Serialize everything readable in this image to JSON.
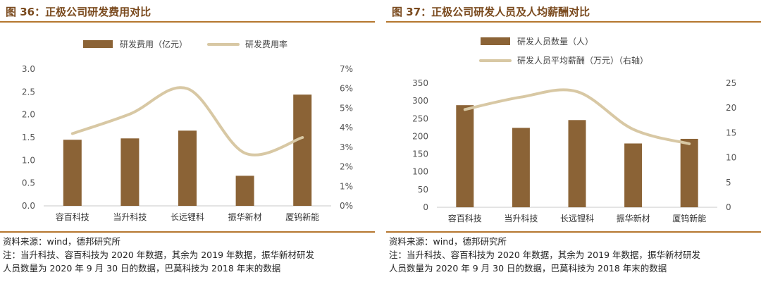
{
  "colors": {
    "bar": "#8b6336",
    "line": "#d8c8a4",
    "title": "#7a4a1e",
    "rule": "#b5772f"
  },
  "charts": [
    {
      "title": "图 36：正极公司研发费用对比",
      "source": "资料来源：wind，德邦研究所",
      "chart_data": {
        "type": "bar",
        "categories": [
          "容百科技",
          "当升科技",
          "长远锂科",
          "振华新材",
          "厦钨新能"
        ],
        "series": [
          {
            "name": "研发费用（亿元）",
            "type": "bar",
            "axis": "left",
            "values": [
              1.45,
              1.48,
              1.65,
              0.66,
              2.44
            ]
          },
          {
            "name": "研发费用率",
            "type": "line",
            "axis": "right",
            "values": [
              3.7,
              4.7,
              6.0,
              2.7,
              3.5
            ]
          }
        ],
        "left_axis": {
          "min": 0,
          "max": 3.0,
          "ticks": [
            "0.0",
            "0.5",
            "1.0",
            "1.5",
            "2.0",
            "2.5",
            "3.0"
          ]
        },
        "right_axis": {
          "min": 0,
          "max": 7,
          "ticks": [
            "0%",
            "1%",
            "2%",
            "3%",
            "4%",
            "5%",
            "6%",
            "7%"
          ]
        }
      }
    },
    {
      "title": "图 37：正极公司研发人员及人均薪酬对比",
      "source": "资料来源：wind，德邦研究所",
      "note_lines": [
        "注：当升科技、容百科技为 2020 年数据，其余为 2019 年数据，振华新材研发",
        "人员数量为 2020 年 9 月 30 日的数据，巴莫科技为 2018 年末的数据"
      ],
      "chart_data": {
        "type": "bar",
        "categories": [
          "容百科技",
          "当升科技",
          "长远锂科",
          "振华新材",
          "厦钨新能"
        ],
        "series": [
          {
            "name": "研发人员数量（人）",
            "type": "bar",
            "axis": "left",
            "values": [
              288,
              224,
              246,
              180,
              193
            ]
          },
          {
            "name": "研发人员平均薪酬（万元）（右轴）",
            "type": "line",
            "axis": "right",
            "values": [
              19.7,
              22.2,
              23.3,
              15.7,
              12.8
            ]
          }
        ],
        "left_axis": {
          "min": 0,
          "max": 350,
          "ticks": [
            "0",
            "50",
            "100",
            "150",
            "200",
            "250",
            "300",
            "350"
          ]
        },
        "right_axis": {
          "min": 0,
          "max": 25,
          "ticks": [
            "0",
            "5",
            "10",
            "15",
            "20",
            "25"
          ]
        }
      }
    }
  ]
}
